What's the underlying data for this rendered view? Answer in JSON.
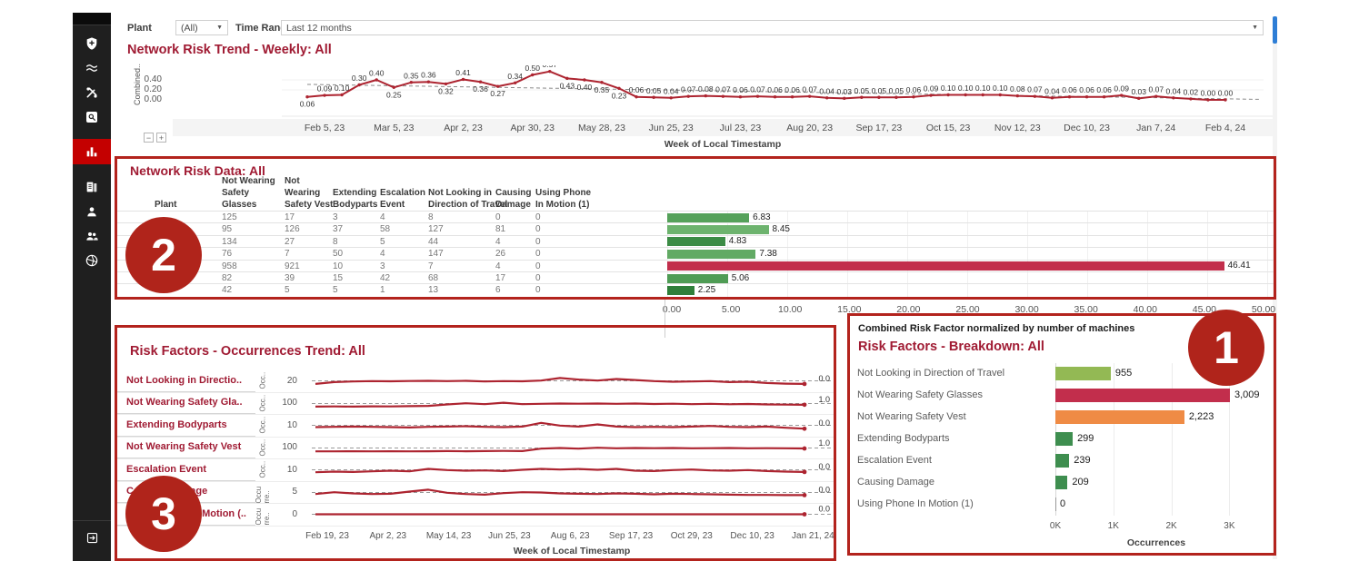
{
  "colors": {
    "annotation_red": "#b3231d",
    "badge_red": "#b0241b",
    "title_red": "#a01b33",
    "line_red": "#ad2430",
    "sidebar_bg": "#1f1f1f",
    "sidebar_active_red": "#c40000",
    "scrollbar_blue": "#2e7ed6"
  },
  "sidebar": {
    "items": [
      {
        "icon": "shield-plus-icon",
        "active": false
      },
      {
        "icon": "waves-icon",
        "active": false
      },
      {
        "icon": "tools-icon",
        "active": false
      },
      {
        "icon": "search-icon",
        "active": false
      },
      {
        "icon": "bar-chart-icon",
        "active": true
      },
      {
        "icon": "report-icon",
        "active": false
      },
      {
        "icon": "user-icon",
        "active": false
      },
      {
        "icon": "users-icon",
        "active": false
      },
      {
        "icon": "aperture-icon",
        "active": false
      }
    ],
    "bottom_item": {
      "icon": "exit-icon"
    }
  },
  "filters": {
    "plant_label": "Plant",
    "plant_value": "(All)",
    "time_range_label": "Time Range",
    "time_range_value": "Last 12 months"
  },
  "zoom_controls": {
    "minus": "−",
    "plus": "+"
  },
  "badges": [
    {
      "label": "1"
    },
    {
      "label": "2"
    },
    {
      "label": "3"
    }
  ],
  "chart_data": [
    {
      "id": "weekly_trend",
      "type": "line",
      "title": "Network Risk Trend - Weekly: All",
      "ylabel": "Combined..",
      "xlabel": "Week of Local Timestamp",
      "y_ticks": [
        "0.40",
        "0.20",
        "0.00"
      ],
      "ylim": [
        0,
        0.6
      ],
      "x_ticks": [
        "Feb 5, 23",
        "Mar 5, 23",
        "Apr 2, 23",
        "Apr 30, 23",
        "May 28, 23",
        "Jun 25, 23",
        "Jul 23, 23",
        "Aug 20, 23",
        "Sep 17, 23",
        "Oct 15, 23",
        "Nov 12, 23",
        "Dec 10, 23",
        "Jan 7, 24",
        "Feb 4, 24"
      ],
      "values": [
        0.06,
        0.09,
        0.1,
        0.3,
        0.4,
        0.25,
        0.35,
        0.36,
        0.32,
        0.41,
        0.36,
        0.27,
        0.34,
        0.5,
        0.57,
        0.43,
        0.4,
        0.35,
        0.23,
        0.06,
        0.05,
        0.04,
        0.07,
        0.08,
        0.07,
        0.06,
        0.07,
        0.06,
        0.06,
        0.07,
        0.04,
        0.03,
        0.05,
        0.05,
        0.05,
        0.06,
        0.09,
        0.1,
        0.1,
        0.1,
        0.1,
        0.08,
        0.07,
        0.04,
        0.06,
        0.06,
        0.06,
        0.09,
        0.03,
        0.07,
        0.04,
        0.02,
        0.0,
        0.0
      ],
      "ref_line": {
        "start": 0.31,
        "end": 0.01
      },
      "grid": true,
      "legend": "none"
    },
    {
      "id": "risk_table",
      "type": "table",
      "title": "Network Risk Data: All",
      "columns": [
        "Plant",
        "Not Wearing Safety Glasses",
        "Not Wearing Safety Vest",
        "Extending Bodyparts",
        "Escalation Event",
        "Not Looking in Direction of Travel",
        "Causing Damage",
        "Using Phone In Motion (1)"
      ],
      "rows": [
        {
          "values": [
            125,
            17,
            3,
            4,
            8,
            0,
            0
          ],
          "bar": 6.83,
          "bar_label": "6.83",
          "color": "#55a15a"
        },
        {
          "values": [
            95,
            126,
            37,
            58,
            127,
            81,
            0
          ],
          "bar": 8.45,
          "bar_label": "8.45",
          "color": "#6db36e"
        },
        {
          "values": [
            134,
            27,
            8,
            5,
            44,
            4,
            0
          ],
          "bar": 4.83,
          "bar_label": "4.83",
          "color": "#3c8c46"
        },
        {
          "values": [
            76,
            7,
            50,
            4,
            147,
            26,
            0
          ],
          "bar": 7.38,
          "bar_label": "7.38",
          "color": "#62aa64"
        },
        {
          "values": [
            958,
            921,
            10,
            3,
            7,
            4,
            0
          ],
          "bar": 46.41,
          "bar_label": "46.41",
          "color": "#c22e4c"
        },
        {
          "values": [
            82,
            39,
            15,
            42,
            68,
            17,
            0
          ],
          "bar": 5.06,
          "bar_label": "5.06",
          "color": "#4f9c55"
        },
        {
          "values": [
            42,
            5,
            5,
            1,
            13,
            6,
            0
          ],
          "bar": 2.25,
          "bar_label": "2.25",
          "color": "#2f7f3a"
        }
      ],
      "bar_axis_ticks": [
        "0.00",
        "5.00",
        "10.00",
        "15.00",
        "20.00",
        "25.00",
        "30.00",
        "35.00",
        "40.00",
        "45.00",
        "50.00"
      ],
      "bar_xlim": [
        0,
        50
      ]
    },
    {
      "id": "occurrences_trend",
      "type": "line",
      "title": "Risk Factors - Occurrences Trend: All",
      "xlabel": "Week of Local Timestamp",
      "x_ticks": [
        "Feb 19, 23",
        "Apr 2, 23",
        "May 14, 23",
        "Jun 25, 23",
        "Aug 6, 23",
        "Sep 17, 23",
        "Oct 29, 23",
        "Dec 10, 23",
        "Jan 21, 24"
      ],
      "rows": [
        {
          "label": "Not Looking in Directio..",
          "axis_label": "Occ..",
          "y_tick": "20",
          "end_label": "0.0",
          "values": [
            0.3,
            0.42,
            0.46,
            0.48,
            0.47,
            0.49,
            0.5,
            0.48,
            0.5,
            0.46,
            0.48,
            0.47,
            0.52,
            0.68,
            0.58,
            0.52,
            0.62,
            0.55,
            0.48,
            0.44,
            0.46,
            0.48,
            0.42,
            0.44,
            0.36,
            0.32,
            0.3
          ]
        },
        {
          "label": "Not Wearing Safety Gla..",
          "axis_label": "Occ..",
          "y_tick": "100",
          "end_label": "1.0",
          "values": [
            0.3,
            0.31,
            0.3,
            0.32,
            0.31,
            0.33,
            0.35,
            0.44,
            0.52,
            0.46,
            0.55,
            0.46,
            0.48,
            0.5,
            0.49,
            0.5,
            0.48,
            0.5,
            0.47,
            0.49,
            0.46,
            0.48,
            0.45,
            0.47,
            0.44,
            0.43,
            0.42
          ]
        },
        {
          "label": "Extending Bodyparts",
          "axis_label": "Occ..",
          "y_tick": "10",
          "end_label": "0.0",
          "values": [
            0.38,
            0.4,
            0.42,
            0.4,
            0.38,
            0.36,
            0.4,
            0.42,
            0.44,
            0.4,
            0.38,
            0.42,
            0.66,
            0.48,
            0.42,
            0.56,
            0.42,
            0.38,
            0.4,
            0.38,
            0.42,
            0.46,
            0.4,
            0.38,
            0.42,
            0.34,
            0.28
          ]
        },
        {
          "label": "Not Wearing Safety Vest",
          "axis_label": "Occ..",
          "y_tick": "100",
          "end_label": "1.0",
          "values": [
            0.28,
            0.28,
            0.29,
            0.28,
            0.29,
            0.28,
            0.29,
            0.3,
            0.29,
            0.3,
            0.31,
            0.3,
            0.46,
            0.5,
            0.46,
            0.52,
            0.48,
            0.5,
            0.49,
            0.5,
            0.48,
            0.49,
            0.5,
            0.48,
            0.49,
            0.48,
            0.47
          ]
        },
        {
          "label": "Escalation Event",
          "axis_label": "Occ..",
          "y_tick": "10",
          "end_label": "0.0",
          "values": [
            0.34,
            0.38,
            0.36,
            0.4,
            0.44,
            0.4,
            0.56,
            0.48,
            0.44,
            0.46,
            0.42,
            0.5,
            0.56,
            0.52,
            0.55,
            0.5,
            0.56,
            0.44,
            0.42,
            0.48,
            0.52,
            0.46,
            0.44,
            0.48,
            0.42,
            0.38,
            0.36
          ]
        },
        {
          "label": "Causing Damage",
          "axis_label": "Occu rre..",
          "y_tick": "5",
          "end_label": "0.0",
          "values": [
            0.4,
            0.52,
            0.44,
            0.4,
            0.42,
            0.56,
            0.68,
            0.48,
            0.4,
            0.36,
            0.46,
            0.52,
            0.5,
            0.44,
            0.42,
            0.4,
            0.44,
            0.42,
            0.38,
            0.42,
            0.4,
            0.38,
            0.36,
            0.34,
            0.34,
            0.33,
            0.33
          ]
        },
        {
          "label": "Using Phone In Motion (..",
          "axis_label": "Occu rre..",
          "y_tick": "0",
          "end_label": "0.0",
          "values": [
            0.5,
            0.5,
            0.5,
            0.5,
            0.5,
            0.5,
            0.5,
            0.5,
            0.5,
            0.5,
            0.5,
            0.5,
            0.5,
            0.5,
            0.5,
            0.5,
            0.5,
            0.5,
            0.5,
            0.5,
            0.5,
            0.5,
            0.5,
            0.5,
            0.5,
            0.5,
            0.5
          ]
        }
      ]
    },
    {
      "id": "breakdown",
      "type": "bar",
      "caption": "Combined Risk Factor normalized by number of machines",
      "title": "Risk Factors - Breakdown: All",
      "xlabel": "Occurrences",
      "categories": [
        "Not Looking in Direction of Travel",
        "Not Wearing Safety Glasses",
        "Not Wearing Safety Vest",
        "Extending Bodyparts",
        "Escalation Event",
        "Causing Damage",
        "Using Phone In Motion (1)"
      ],
      "values": [
        955,
        3009,
        2223,
        299,
        239,
        209,
        0
      ],
      "value_labels": [
        "955",
        "3,009",
        "2,223",
        "299",
        "239",
        "209",
        "0"
      ],
      "bar_colors": [
        "#93b954",
        "#c22e4c",
        "#ef8b45",
        "#3e8e4f",
        "#3e8e4f",
        "#3e8e4f",
        "#3e8e4f"
      ],
      "x_ticks": [
        "0K",
        "1K",
        "2K",
        "3K"
      ],
      "xlim": [
        0,
        3600
      ]
    }
  ]
}
